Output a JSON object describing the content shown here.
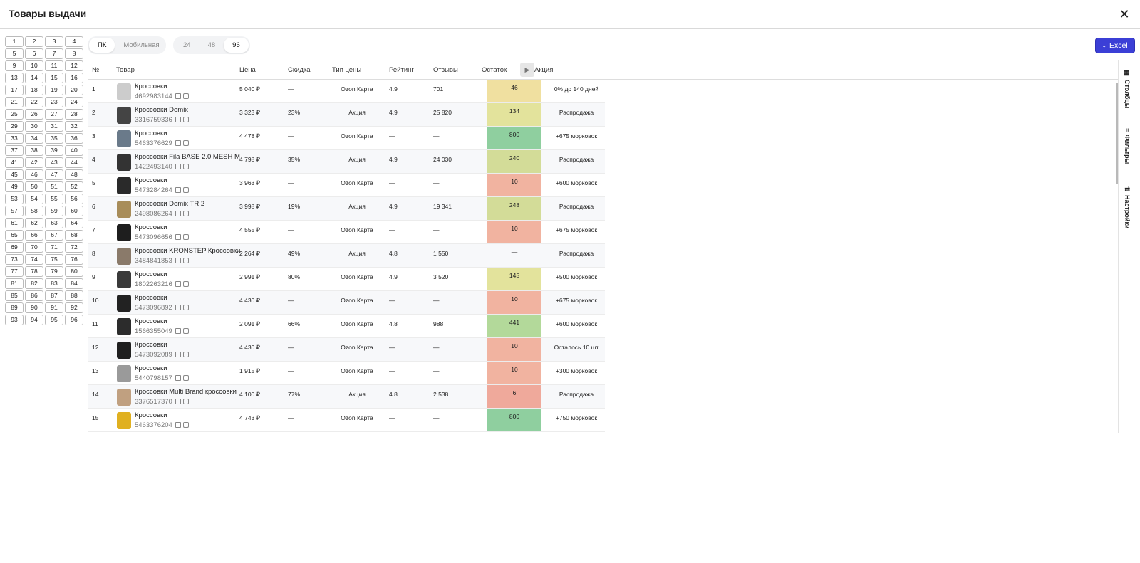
{
  "header": {
    "title": "Товары выдачи",
    "close_icon": "close-icon"
  },
  "pages": [
    "1",
    "2",
    "3",
    "4",
    "5",
    "6",
    "7",
    "8",
    "9",
    "10",
    "11",
    "12",
    "13",
    "14",
    "15",
    "16",
    "17",
    "18",
    "19",
    "20",
    "21",
    "22",
    "23",
    "24",
    "25",
    "26",
    "27",
    "28",
    "29",
    "30",
    "31",
    "32",
    "33",
    "34",
    "35",
    "36",
    "37",
    "38",
    "39",
    "40",
    "41",
    "42",
    "43",
    "44",
    "45",
    "46",
    "47",
    "48",
    "49",
    "50",
    "51",
    "52",
    "53",
    "54",
    "55",
    "56",
    "57",
    "58",
    "59",
    "60",
    "61",
    "62",
    "63",
    "64",
    "65",
    "66",
    "67",
    "68",
    "69",
    "70",
    "71",
    "72",
    "73",
    "74",
    "75",
    "76",
    "77",
    "78",
    "79",
    "80",
    "81",
    "82",
    "83",
    "84",
    "85",
    "86",
    "87",
    "88",
    "89",
    "90",
    "91",
    "92",
    "93",
    "94",
    "95",
    "96"
  ],
  "device_toggle": {
    "options": [
      "ПК",
      "Мобильная"
    ],
    "selected": "ПК"
  },
  "count_toggle": {
    "options": [
      "24",
      "48",
      "96"
    ],
    "selected": "96"
  },
  "excel_button": {
    "label": "Excel",
    "icon": "download-icon"
  },
  "columns": {
    "num": "№",
    "product": "Товар",
    "price": "Цена",
    "discount": "Скидка",
    "price_type": "Тип цены",
    "rating": "Рейтинг",
    "reviews": "Отзывы",
    "stock": "Остаток",
    "promo": "Акция"
  },
  "sidebar": {
    "columns": "Столбцы",
    "filters": "Фильтры",
    "settings": "Настройки"
  },
  "stock_colors": {
    "high": "#8fcf9f",
    "mid": "#dfe09a",
    "mid2": "#d3dc98",
    "low": "#f1b3a0",
    "very_low": "#efa99b"
  },
  "rows": [
    {
      "n": "1",
      "name": "Кроссовки",
      "sku": "4692983144",
      "price": "5 040 ₽",
      "discount": "—",
      "ptype": "Ozon Карта",
      "rating": "4.9",
      "reviews": "701",
      "stock": "46",
      "stock_color": "#f0e0a0",
      "promo": "0% до 140 дней"
    },
    {
      "n": "2",
      "name": "Кроссовки Demix",
      "sku": "3316759336",
      "price": "3 323 ₽",
      "discount": "23%",
      "ptype": "Акция",
      "rating": "4.9",
      "reviews": "25 820",
      "stock": "134",
      "stock_color": "#e3e39c",
      "promo": "Распродажа"
    },
    {
      "n": "3",
      "name": "Кроссовки",
      "sku": "5463376629",
      "price": "4 478 ₽",
      "discount": "—",
      "ptype": "Ozon Карта",
      "rating": "—",
      "reviews": "—",
      "stock": "800",
      "stock_color": "#8fcf9f",
      "promo": "+675 морковок"
    },
    {
      "n": "4",
      "name": "Кроссовки Fila BASE 2.0 MESH M",
      "sku": "1422493140",
      "price": "4 798 ₽",
      "discount": "35%",
      "ptype": "Акция",
      "rating": "4.9",
      "reviews": "24 030",
      "stock": "240",
      "stock_color": "#d3dc98",
      "promo": "Распродажа"
    },
    {
      "n": "5",
      "name": "Кроссовки",
      "sku": "5473284264",
      "price": "3 963 ₽",
      "discount": "—",
      "ptype": "Ozon Карта",
      "rating": "—",
      "reviews": "—",
      "stock": "10",
      "stock_color": "#f1b3a0",
      "promo": "+600 морковок"
    },
    {
      "n": "6",
      "name": "Кроссовки Demix TR 2",
      "sku": "2498086264",
      "price": "3 998 ₽",
      "discount": "19%",
      "ptype": "Акция",
      "rating": "4.9",
      "reviews": "19 341",
      "stock": "248",
      "stock_color": "#d3dc98",
      "promo": "Распродажа"
    },
    {
      "n": "7",
      "name": "Кроссовки",
      "sku": "5473096656",
      "price": "4 555 ₽",
      "discount": "—",
      "ptype": "Ozon Карта",
      "rating": "—",
      "reviews": "—",
      "stock": "10",
      "stock_color": "#f1b3a0",
      "promo": "+675 морковок"
    },
    {
      "n": "8",
      "name": "Кроссовки KRONSTEP Кроссовки",
      "sku": "3484841853",
      "price": "2 264 ₽",
      "discount": "49%",
      "ptype": "Акция",
      "rating": "4.8",
      "reviews": "1 550",
      "stock": "—",
      "stock_color": "#f7f8fa",
      "promo": "Распродажа"
    },
    {
      "n": "9",
      "name": "Кроссовки",
      "sku": "1802263216",
      "price": "2 991 ₽",
      "discount": "80%",
      "ptype": "Ozon Карта",
      "rating": "4.9",
      "reviews": "3 520",
      "stock": "145",
      "stock_color": "#e3e39c",
      "promo": "+500 морковок"
    },
    {
      "n": "10",
      "name": "Кроссовки",
      "sku": "5473096892",
      "price": "4 430 ₽",
      "discount": "—",
      "ptype": "Ozon Карта",
      "rating": "—",
      "reviews": "—",
      "stock": "10",
      "stock_color": "#f1b3a0",
      "promo": "+675 морковок"
    },
    {
      "n": "11",
      "name": "Кроссовки",
      "sku": "1566355049",
      "price": "2 091 ₽",
      "discount": "66%",
      "ptype": "Ozon Карта",
      "rating": "4.8",
      "reviews": "988",
      "stock": "441",
      "stock_color": "#b3d99a",
      "promo": "+600 морковок"
    },
    {
      "n": "12",
      "name": "Кроссовки",
      "sku": "5473092089",
      "price": "4 430 ₽",
      "discount": "—",
      "ptype": "Ozon Карта",
      "rating": "—",
      "reviews": "—",
      "stock": "10",
      "stock_color": "#f1b3a0",
      "promo": "Осталось 10 шт"
    },
    {
      "n": "13",
      "name": "Кроссовки",
      "sku": "5440798157",
      "price": "1 915 ₽",
      "discount": "—",
      "ptype": "Ozon Карта",
      "rating": "—",
      "reviews": "—",
      "stock": "10",
      "stock_color": "#f1b3a0",
      "promo": "+300 морковок"
    },
    {
      "n": "14",
      "name": "Кроссовки Multi Brand кроссовки",
      "sku": "3376517370",
      "price": "4 100 ₽",
      "discount": "77%",
      "ptype": "Акция",
      "rating": "4.8",
      "reviews": "2 538",
      "stock": "6",
      "stock_color": "#efa99b",
      "promo": "Распродажа"
    },
    {
      "n": "15",
      "name": "Кроссовки",
      "sku": "5463376204",
      "price": "4 743 ₽",
      "discount": "—",
      "ptype": "Ozon Карта",
      "rating": "—",
      "reviews": "—",
      "stock": "800",
      "stock_color": "#8fcf9f",
      "promo": "+750 морковок"
    }
  ]
}
